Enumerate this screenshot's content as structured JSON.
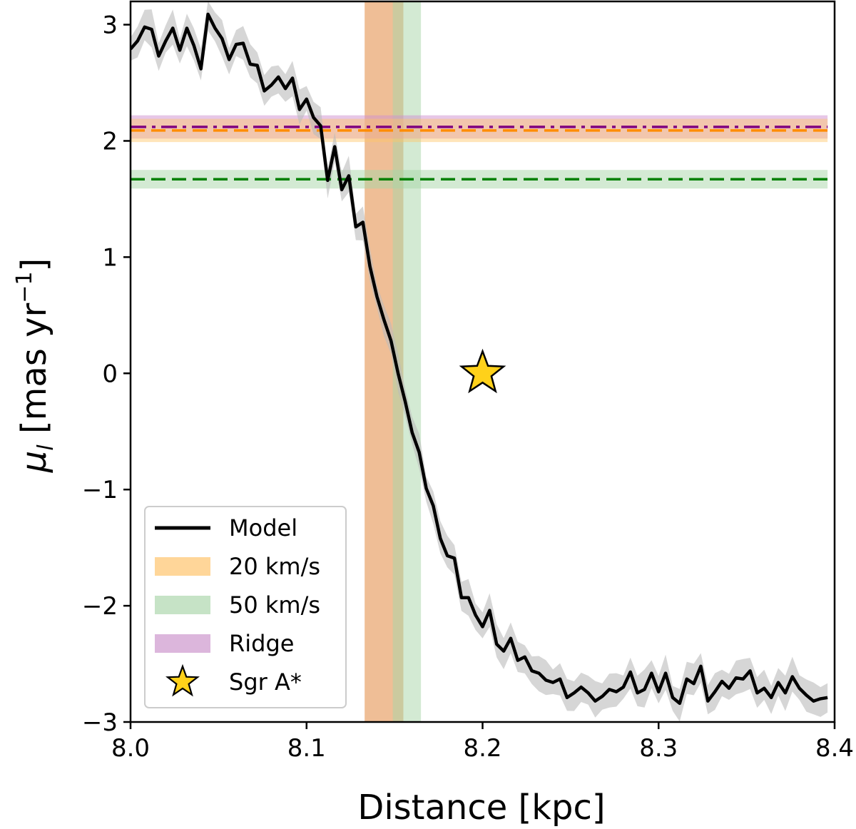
{
  "chart_data": {
    "type": "line",
    "title": "",
    "xlabel": "Distance [kpc]",
    "ylabel_main": "μ",
    "ylabel_sub": "l",
    "ylabel_rest": " [mas yr",
    "ylabel_sup": "−1",
    "ylabel_close": "]",
    "xlim": [
      8.0,
      8.4
    ],
    "ylim": [
      -3.0,
      3.2
    ],
    "x_ticks": [
      {
        "value": 8.0,
        "label": "8.0"
      },
      {
        "value": 8.1,
        "label": "8.1"
      },
      {
        "value": 8.2,
        "label": "8.2"
      },
      {
        "value": 8.3,
        "label": "8.3"
      },
      {
        "value": 8.4,
        "label": "8.4"
      }
    ],
    "y_ticks": [
      {
        "value": 3,
        "label": "3"
      },
      {
        "value": 2,
        "label": "2"
      },
      {
        "value": 1,
        "label": "1"
      },
      {
        "value": 0,
        "label": "0"
      },
      {
        "value": -1,
        "label": "−1"
      },
      {
        "value": -2,
        "label": "−2"
      },
      {
        "value": -3,
        "label": "−3"
      }
    ],
    "grid": false,
    "legend_position": "lower-left",
    "model": {
      "name": "Model",
      "color": "#000000",
      "band_color": "#bbbbbb",
      "x": [
        8.0,
        8.004,
        8.008,
        8.012,
        8.016,
        8.02,
        8.024,
        8.028,
        8.032,
        8.036,
        8.04,
        8.044,
        8.048,
        8.052,
        8.056,
        8.06,
        8.064,
        8.068,
        8.072,
        8.076,
        8.08,
        8.084,
        8.088,
        8.092,
        8.096,
        8.1,
        8.104,
        8.108,
        8.112,
        8.116,
        8.12,
        8.124,
        8.128,
        8.132,
        8.136,
        8.14,
        8.144,
        8.148,
        8.152,
        8.156,
        8.16,
        8.164,
        8.168,
        8.172,
        8.176,
        8.18,
        8.184,
        8.188,
        8.192,
        8.196,
        8.2,
        8.204,
        8.208,
        8.212,
        8.216,
        8.22,
        8.224,
        8.228,
        8.232,
        8.236,
        8.24,
        8.244,
        8.248,
        8.252,
        8.256,
        8.26,
        8.264,
        8.268,
        8.272,
        8.276,
        8.28,
        8.284,
        8.288,
        8.292,
        8.296,
        8.3,
        8.304,
        8.308,
        8.312,
        8.316,
        8.32,
        8.324,
        8.328,
        8.332,
        8.336,
        8.34,
        8.344,
        8.348,
        8.352,
        8.356,
        8.36,
        8.364,
        8.368,
        8.372,
        8.376,
        8.38,
        8.384,
        8.388,
        8.392,
        8.396
      ],
      "y": [
        2.79,
        2.86,
        2.98,
        2.96,
        2.73,
        2.86,
        2.97,
        2.78,
        2.97,
        2.82,
        2.62,
        3.09,
        2.97,
        2.88,
        2.7,
        2.83,
        2.84,
        2.66,
        2.65,
        2.43,
        2.48,
        2.55,
        2.45,
        2.54,
        2.27,
        2.36,
        2.2,
        2.13,
        1.66,
        1.95,
        1.58,
        1.7,
        1.26,
        1.3,
        0.92,
        0.66,
        0.46,
        0.28,
        0.0,
        -0.24,
        -0.51,
        -0.68,
        -0.99,
        -1.14,
        -1.42,
        -1.57,
        -1.59,
        -1.93,
        -1.93,
        -2.08,
        -2.18,
        -2.04,
        -2.33,
        -2.39,
        -2.28,
        -2.47,
        -2.44,
        -2.56,
        -2.58,
        -2.64,
        -2.66,
        -2.63,
        -2.79,
        -2.75,
        -2.7,
        -2.75,
        -2.82,
        -2.78,
        -2.72,
        -2.74,
        -2.7,
        -2.57,
        -2.75,
        -2.72,
        -2.58,
        -2.74,
        -2.58,
        -2.79,
        -2.84,
        -2.63,
        -2.67,
        -2.52,
        -2.82,
        -2.74,
        -2.65,
        -2.71,
        -2.62,
        -2.63,
        -2.56,
        -2.75,
        -2.71,
        -2.79,
        -2.66,
        -2.75,
        -2.61,
        -2.71,
        -2.77,
        -2.82,
        -2.8,
        -2.79
      ],
      "band_halfwidth": 0.1
    },
    "vbands": [
      {
        "name": "20 km/s",
        "x0": 8.133,
        "x1": 8.155,
        "color": "#e8a36a",
        "opacity": 0.7
      },
      {
        "name": "50 km/s",
        "x0": 8.149,
        "x1": 8.165,
        "color": "#a7d5a7",
        "opacity": 0.5
      }
    ],
    "hbands": [
      {
        "name": "Ridge",
        "y": 2.12,
        "halfwidth": 0.1,
        "color": "#d08fd0",
        "opacity": 0.5,
        "line_color": "#800080",
        "dash": "dashdot"
      },
      {
        "name": "20 km/s",
        "y": 2.09,
        "halfwidth": 0.1,
        "color": "#ffc567",
        "opacity": 0.45,
        "line_color": "#ff8c00",
        "dash": "dashed"
      },
      {
        "name": "50 km/s",
        "y": 1.67,
        "halfwidth": 0.08,
        "color": "#a7d5a7",
        "opacity": 0.5,
        "line_color": "#008000",
        "dash": "dashed"
      }
    ],
    "sgr_a": {
      "name": "Sgr A*",
      "x": 8.2,
      "y": 0.0,
      "color": "#ffd11a"
    },
    "legend": [
      {
        "label": "Model",
        "kind": "line",
        "color": "#000000"
      },
      {
        "label": "20 km/s",
        "kind": "patch",
        "color": "#ffd699"
      },
      {
        "label": "50 km/s",
        "kind": "patch",
        "color": "#c6e3c6"
      },
      {
        "label": "Ridge",
        "kind": "patch",
        "color": "#dcb6dc"
      },
      {
        "label": "Sgr A*",
        "kind": "star",
        "color": "#ffd11a"
      }
    ]
  }
}
